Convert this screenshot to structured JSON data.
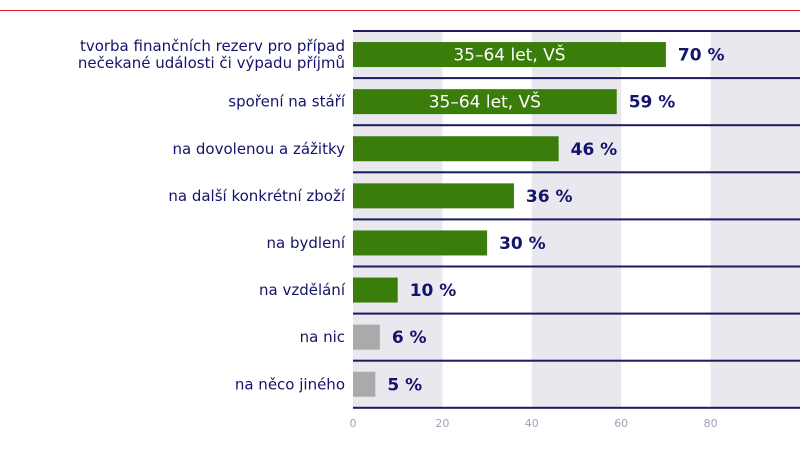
{
  "chart_data": {
    "type": "bar",
    "orientation": "horizontal",
    "categories": [
      "tvorba finančních rezerv pro případ|nečekané události či výpadu příjmů",
      "spoření na stáří",
      "na dovolenou a zážitky",
      "na další konkrétní zboží",
      "na bydlení",
      "na vzdělání",
      "na nic",
      "na něco jiného"
    ],
    "values": [
      70,
      59,
      46,
      36,
      30,
      10,
      6,
      5
    ],
    "value_labels": [
      "70 %",
      "59 %",
      "46 %",
      "36 %",
      "30 %",
      "10 %",
      "6 %",
      "5 %"
    ],
    "bar_annotations": [
      "35–64 let, VŠ",
      "35–64 let, VŠ",
      "",
      "",
      "",
      "",
      "",
      ""
    ],
    "bar_colors": [
      "#3a7d0a",
      "#3a7d0a",
      "#3a7d0a",
      "#3a7d0a",
      "#3a7d0a",
      "#3a7d0a",
      "#aaaaaa",
      "#aaaaaa"
    ],
    "xlim": [
      0,
      100
    ],
    "xticks": [
      0,
      20,
      40,
      60,
      80
    ],
    "xtick_labels": [
      "0",
      "20",
      "40",
      "60",
      "80"
    ],
    "grid": "alternating vertical bands",
    "colors": {
      "band": "#e8e8ee",
      "separator": "#1b1b5e",
      "label": "#14146b",
      "accent_line": "#d9232e"
    }
  }
}
